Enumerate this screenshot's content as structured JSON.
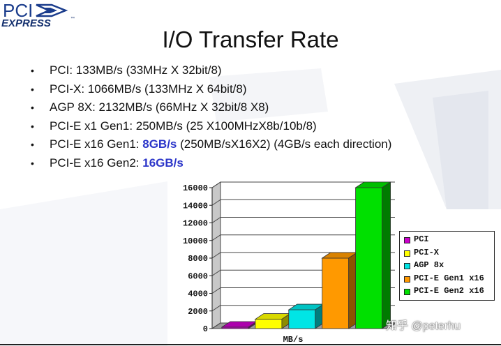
{
  "logo": {
    "line1": "PCI",
    "line2": "EXPRESS",
    "tm": "™"
  },
  "title": "I/O Transfer Rate",
  "bullets": [
    {
      "marker": "•",
      "text": "PCI: 133MB/s (33MHz X 32bit/8)",
      "highlight": "",
      "rest": ""
    },
    {
      "marker": "•",
      "text": "PCI-X: 1066MB/s (133MHz X 64bit/8)",
      "highlight": "",
      "rest": ""
    },
    {
      "marker": "•",
      "text": "AGP 8X: 2132MB/s (66MHz X 32bit/8 X8)",
      "highlight": "",
      "rest": ""
    },
    {
      "marker": "•",
      "text": "PCI-E x1 Gen1: 250MB/s (25 X100MHzX8b/10b/8)",
      "highlight": "",
      "rest": ""
    },
    {
      "marker": "•",
      "text": "PCI-E x16 Gen1: ",
      "highlight": "8GB/s",
      "rest": " (250MB/sX16X2) (4GB/s each direction)"
    },
    {
      "marker": "•",
      "text": "PCI-E x16 Gen2: ",
      "highlight": "16GB/s",
      "rest": ""
    }
  ],
  "chart_data": {
    "type": "bar",
    "title": "",
    "xlabel": "MB/s",
    "ylabel": "",
    "ylim": [
      0,
      16000
    ],
    "yticks": [
      "0",
      "2000",
      "4000",
      "6000",
      "8000",
      "10000",
      "12000",
      "14000",
      "16000"
    ],
    "grid": true,
    "legend_position": "right",
    "series": [
      {
        "name": "PCI",
        "value": 133,
        "color": "#cc00cc"
      },
      {
        "name": "PCI-X",
        "value": 1066,
        "color": "#ffff00"
      },
      {
        "name": "AGP 8x",
        "value": 2132,
        "color": "#00e5e5"
      },
      {
        "name": "PCI-E Gen1 x16",
        "value": 8000,
        "color": "#ff9900"
      },
      {
        "name": "PCI-E Gen2 x16",
        "value": 16000,
        "color": "#00e000"
      }
    ]
  },
  "watermark": "知乎 @peterhu"
}
